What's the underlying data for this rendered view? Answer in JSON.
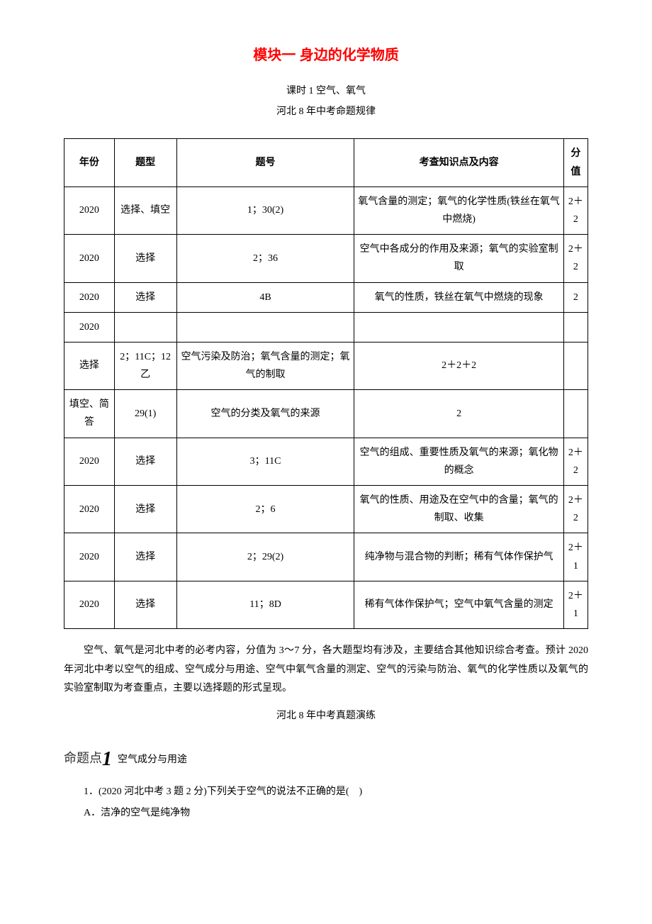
{
  "title": "模块一 身边的化学物质",
  "subtitle1": "课时 1 空气、氧气",
  "subtitle2": "河北 8 年中考命题规律",
  "table": {
    "headers": [
      "年份",
      "题型",
      "题号",
      "考查知识点及内容",
      "分值"
    ],
    "rows": [
      [
        "2020",
        "选择、填空",
        "1；30(2)",
        "氧气含量的测定；氧气的化学性质(铁丝在氧气中燃烧)",
        "2＋2"
      ],
      [
        "2020",
        "选择",
        "2；36",
        "空气中各成分的作用及来源；氧气的实验室制取",
        "2＋2"
      ],
      [
        "2020",
        "选择",
        "4B",
        "氧气的性质，铁丝在氧气中燃烧的现象",
        "2"
      ],
      [
        "2020",
        "",
        "",
        "",
        ""
      ],
      [
        "选择",
        "2；11C；12 乙",
        "空气污染及防治；氧气含量的测定；氧气的制取",
        "2＋2＋2",
        ""
      ],
      [
        "填空、简答",
        "29(1)",
        "空气的分类及氧气的来源",
        "2",
        ""
      ],
      [
        "2020",
        "选择",
        "3；11C",
        "空气的组成、重要性质及氧气的来源；氧化物的概念",
        "2＋2"
      ],
      [
        "2020",
        "选择",
        "2；6",
        "氧气的性质、用途及在空气中的含量；氧气的制取、收集",
        "2＋2"
      ],
      [
        "2020",
        "选择",
        "2；29(2)",
        "纯净物与混合物的判断；稀有气体作保护气",
        "2＋1"
      ],
      [
        "2020",
        "选择",
        "11；8D",
        "稀有气体作保护气；空气中氧气含量的测定",
        "2＋1"
      ]
    ]
  },
  "paragraph": "空气、氧气是河北中考的必考内容，分值为 3～7 分，各大题型均有涉及，主要结合其他知识综合考查。预计 2020 年河北中考以空气的组成、空气成分与用途、空气中氧气含量的测定、空气的污染与防治、氧气的化学性质以及氧气的实验室制取为考查重点，主要以选择题的形式呈现。",
  "section_title": "河北 8 年中考真题演练",
  "topic": {
    "label": "命题点",
    "number": "1",
    "text": "空气成分与用途"
  },
  "question": {
    "number": "1．",
    "source": "(2020 河北中考 3 题 2 分)",
    "text": "下列关于空气的说法不正确的是(　)",
    "optionA": "A．洁净的空气是纯净物"
  }
}
